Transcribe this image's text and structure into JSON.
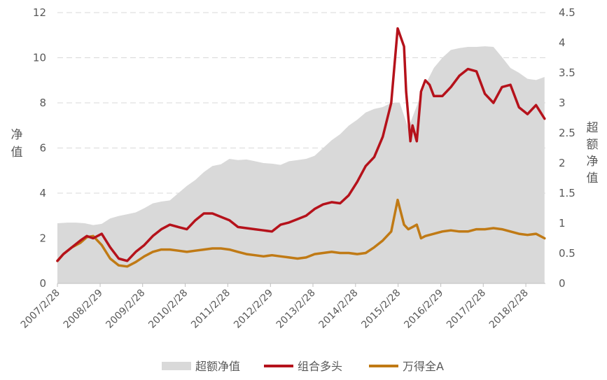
{
  "chart_data": {
    "type": "line",
    "xlabel": "",
    "x_ticks": [
      "2007/2/28",
      "2008/2/29",
      "2009/2/28",
      "2010/2/28",
      "2011/2/28",
      "2012/2/29",
      "2013/2/28",
      "2014/2/28",
      "2015/2/28",
      "2016/2/29",
      "2017/2/28",
      "2018/2/28"
    ],
    "ylabel_left": "净值",
    "ylabel_right": "超额净值",
    "ylim_left": [
      0,
      12
    ],
    "ylim_right": [
      0,
      4.5
    ],
    "y_ticks_left": [
      "0",
      "2",
      "4",
      "6",
      "8",
      "10",
      "12"
    ],
    "y_ticks_right": [
      "0",
      "0.5",
      "1",
      "1.5",
      "2",
      "2.5",
      "3",
      "3.5",
      "4",
      "4.5"
    ],
    "grid": "horizontal dashed",
    "legend_position": "bottom",
    "colors": {
      "area": "#d9d9d9",
      "portfolio": "#b5121b",
      "index": "#c07a15"
    },
    "series": [
      {
        "name": "超额净值",
        "axis": "right",
        "style": "area",
        "x": [
          2007.16,
          2007.4,
          2007.6,
          2007.8,
          2008.0,
          2008.2,
          2008.4,
          2008.6,
          2008.8,
          2009.0,
          2009.2,
          2009.4,
          2009.6,
          2009.8,
          2010.0,
          2010.2,
          2010.4,
          2010.6,
          2010.8,
          2011.0,
          2011.2,
          2011.4,
          2011.6,
          2011.8,
          2012.0,
          2012.2,
          2012.4,
          2012.6,
          2012.8,
          2013.0,
          2013.2,
          2013.4,
          2013.6,
          2013.8,
          2014.0,
          2014.2,
          2014.4,
          2014.6,
          2014.8,
          2015.0,
          2015.2,
          2015.4,
          2015.6,
          2015.8,
          2016.0,
          2016.2,
          2016.4,
          2016.6,
          2016.8,
          2017.0,
          2017.2,
          2017.4,
          2017.6,
          2017.8,
          2018.0,
          2018.2,
          2018.4,
          2018.6
        ],
        "values": [
          1.0,
          1.01,
          1.01,
          1.0,
          0.97,
          0.99,
          1.08,
          1.12,
          1.15,
          1.18,
          1.25,
          1.33,
          1.36,
          1.38,
          1.5,
          1.62,
          1.72,
          1.85,
          1.95,
          1.98,
          2.07,
          2.05,
          2.06,
          2.03,
          2.0,
          1.99,
          1.97,
          2.03,
          2.05,
          2.07,
          2.12,
          2.25,
          2.38,
          2.48,
          2.62,
          2.72,
          2.84,
          2.9,
          2.93,
          3.0,
          3.0,
          2.58,
          2.95,
          3.3,
          3.58,
          3.75,
          3.88,
          3.91,
          3.93,
          3.93,
          3.94,
          3.93,
          3.76,
          3.58,
          3.5,
          3.4,
          3.38,
          3.43
        ]
      },
      {
        "name": "组合多头",
        "axis": "left",
        "style": "line",
        "x": [
          2007.16,
          2007.3,
          2007.5,
          2007.7,
          2007.85,
          2008.0,
          2008.2,
          2008.4,
          2008.6,
          2008.8,
          2009.0,
          2009.2,
          2009.4,
          2009.6,
          2009.8,
          2010.0,
          2010.2,
          2010.4,
          2010.6,
          2010.8,
          2011.0,
          2011.2,
          2011.4,
          2011.6,
          2011.8,
          2012.0,
          2012.2,
          2012.4,
          2012.6,
          2012.8,
          2013.0,
          2013.2,
          2013.4,
          2013.6,
          2013.8,
          2014.0,
          2014.2,
          2014.4,
          2014.6,
          2014.8,
          2015.0,
          2015.15,
          2015.3,
          2015.35,
          2015.45,
          2015.5,
          2015.6,
          2015.7,
          2015.8,
          2015.9,
          2016.0,
          2016.2,
          2016.4,
          2016.6,
          2016.8,
          2017.0,
          2017.2,
          2017.4,
          2017.6,
          2017.8,
          2018.0,
          2018.2,
          2018.4,
          2018.6
        ],
        "values": [
          1.0,
          1.3,
          1.6,
          1.9,
          2.1,
          2.0,
          2.2,
          1.6,
          1.1,
          1.0,
          1.4,
          1.7,
          2.1,
          2.4,
          2.6,
          2.5,
          2.4,
          2.8,
          3.1,
          3.1,
          2.95,
          2.8,
          2.5,
          2.45,
          2.4,
          2.35,
          2.3,
          2.6,
          2.7,
          2.85,
          3.0,
          3.3,
          3.5,
          3.6,
          3.55,
          3.9,
          4.5,
          5.2,
          5.6,
          6.5,
          8.0,
          11.3,
          10.5,
          8.5,
          6.3,
          7.0,
          6.3,
          8.5,
          9.0,
          8.8,
          8.3,
          8.3,
          8.7,
          9.2,
          9.5,
          9.4,
          8.4,
          8.0,
          8.7,
          8.8,
          7.8,
          7.5,
          7.9,
          7.3
        ]
      },
      {
        "name": "万得全A",
        "axis": "left",
        "style": "line",
        "x": [
          2007.16,
          2007.3,
          2007.5,
          2007.7,
          2007.85,
          2008.0,
          2008.2,
          2008.4,
          2008.6,
          2008.8,
          2009.0,
          2009.2,
          2009.4,
          2009.6,
          2009.8,
          2010.0,
          2010.2,
          2010.4,
          2010.6,
          2010.8,
          2011.0,
          2011.2,
          2011.4,
          2011.6,
          2011.8,
          2012.0,
          2012.2,
          2012.4,
          2012.6,
          2012.8,
          2013.0,
          2013.2,
          2013.4,
          2013.6,
          2013.8,
          2014.0,
          2014.2,
          2014.4,
          2014.6,
          2014.8,
          2015.0,
          2015.15,
          2015.3,
          2015.4,
          2015.5,
          2015.6,
          2015.7,
          2015.8,
          2015.9,
          2016.0,
          2016.2,
          2016.4,
          2016.6,
          2016.8,
          2017.0,
          2017.2,
          2017.4,
          2017.6,
          2017.8,
          2018.0,
          2018.2,
          2018.4,
          2018.6
        ],
        "values": [
          1.0,
          1.3,
          1.6,
          1.8,
          2.05,
          2.1,
          1.7,
          1.1,
          0.8,
          0.75,
          0.95,
          1.2,
          1.4,
          1.5,
          1.5,
          1.45,
          1.4,
          1.45,
          1.5,
          1.55,
          1.55,
          1.5,
          1.4,
          1.3,
          1.25,
          1.2,
          1.25,
          1.2,
          1.15,
          1.1,
          1.15,
          1.3,
          1.35,
          1.4,
          1.35,
          1.35,
          1.3,
          1.35,
          1.6,
          1.9,
          2.3,
          3.7,
          2.6,
          2.4,
          2.5,
          2.6,
          2.0,
          2.1,
          2.15,
          2.2,
          2.3,
          2.35,
          2.3,
          2.3,
          2.4,
          2.4,
          2.45,
          2.4,
          2.3,
          2.2,
          2.15,
          2.2,
          2.0
        ]
      }
    ]
  }
}
